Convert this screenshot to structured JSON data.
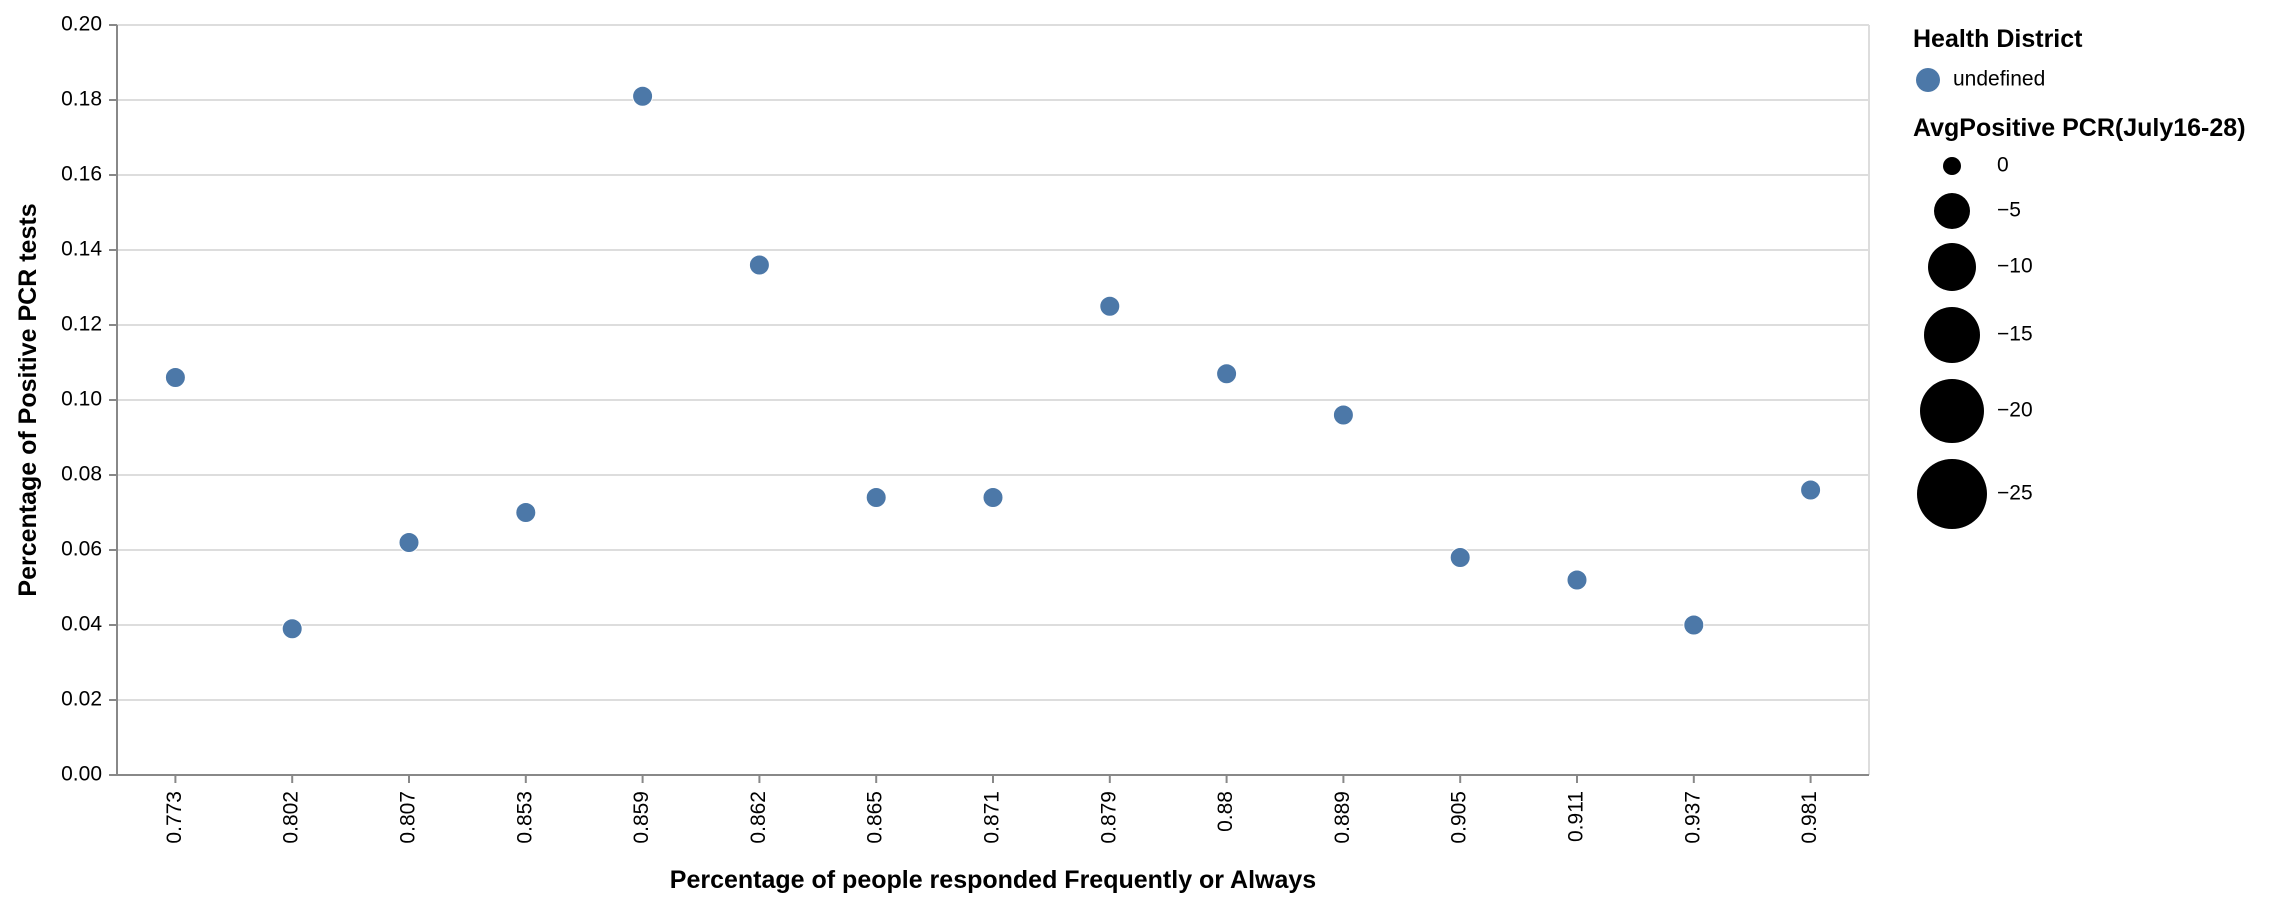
{
  "chart_data": {
    "type": "scatter",
    "xlabel": "Percentage of people responded Frequently or Always",
    "ylabel": "Percentage of Positive PCR tests",
    "x_scale": "ordinal",
    "categories": [
      "0.773",
      "0.802",
      "0.807",
      "0.853",
      "0.859",
      "0.862",
      "0.865",
      "0.871",
      "0.879",
      "0.88",
      "0.889",
      "0.905",
      "0.911",
      "0.937",
      "0.981"
    ],
    "ylim": [
      0,
      0.2
    ],
    "y_ticks": [
      "0.00",
      "0.02",
      "0.04",
      "0.06",
      "0.08",
      "0.10",
      "0.12",
      "0.14",
      "0.16",
      "0.18",
      "0.20"
    ],
    "grid": true,
    "series": [
      {
        "name": "undefined",
        "color": "#4c78a8",
        "points": [
          {
            "x": "0.773",
            "y": 0.106
          },
          {
            "x": "0.802",
            "y": 0.039
          },
          {
            "x": "0.807",
            "y": 0.062
          },
          {
            "x": "0.853",
            "y": 0.07
          },
          {
            "x": "0.859",
            "y": 0.181
          },
          {
            "x": "0.862",
            "y": 0.136
          },
          {
            "x": "0.865",
            "y": 0.074
          },
          {
            "x": "0.871",
            "y": 0.074
          },
          {
            "x": "0.879",
            "y": 0.125
          },
          {
            "x": "0.88",
            "y": 0.107
          },
          {
            "x": "0.889",
            "y": 0.096
          },
          {
            "x": "0.905",
            "y": 0.058
          },
          {
            "x": "0.911",
            "y": 0.052
          },
          {
            "x": "0.937",
            "y": 0.04
          },
          {
            "x": "0.981",
            "y": 0.076
          }
        ]
      }
    ],
    "legend": {
      "placement": "right",
      "color_title": "Health District",
      "color_entries": [
        {
          "label": "undefined",
          "color": "#4c78a8"
        }
      ],
      "size_title": "AvgPositive PCR(July16-28)",
      "size_entries": [
        {
          "label": "0",
          "value": 0
        },
        {
          "label": "−5",
          "value": -5
        },
        {
          "label": "−10",
          "value": -10
        },
        {
          "label": "−15",
          "value": -15
        },
        {
          "label": "−20",
          "value": -20
        },
        {
          "label": "−25",
          "value": -25
        }
      ]
    }
  }
}
